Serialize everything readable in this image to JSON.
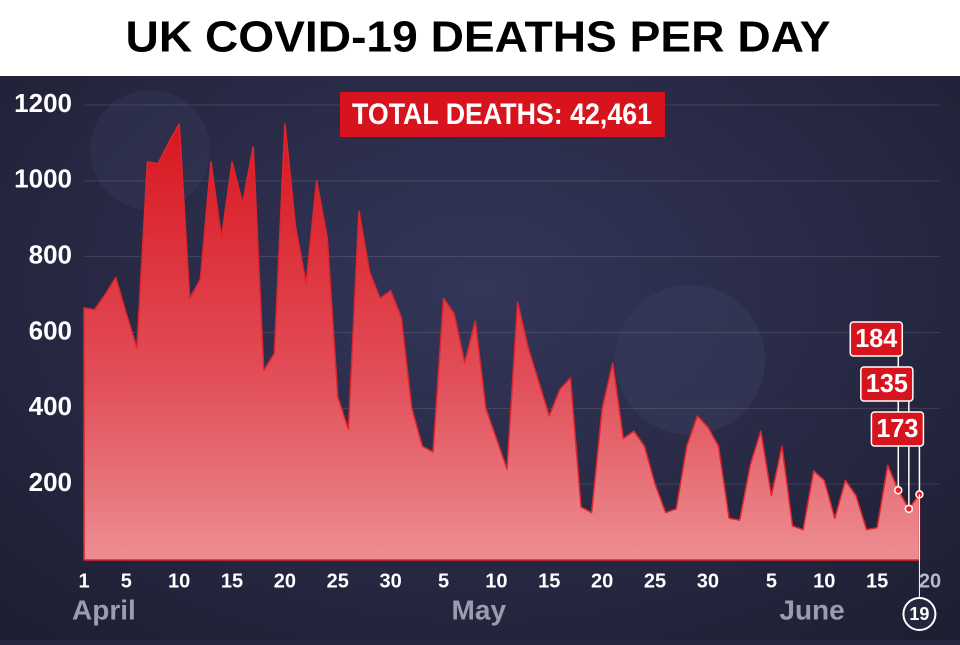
{
  "chart_data": {
    "type": "area",
    "title": "UK COVID-19 DEATHS PER DAY",
    "annotation": "TOTAL DEATHS: 42,461",
    "categories": [
      "1",
      null,
      null,
      null,
      "5",
      null,
      null,
      null,
      null,
      "10",
      null,
      null,
      null,
      null,
      "15",
      null,
      null,
      null,
      null,
      "20",
      null,
      null,
      null,
      null,
      "25",
      null,
      null,
      null,
      null,
      "30",
      null,
      null,
      null,
      null,
      "5",
      null,
      null,
      null,
      null,
      "10",
      null,
      null,
      null,
      null,
      "15",
      null,
      null,
      null,
      null,
      "20",
      null,
      null,
      null,
      null,
      "25",
      null,
      null,
      null,
      null,
      "30",
      null,
      null,
      null,
      null,
      null,
      "5",
      null,
      null,
      null,
      null,
      "10",
      null,
      null,
      null,
      null,
      "15",
      null,
      null,
      null,
      "19",
      "20"
    ],
    "months": [
      "April",
      "May",
      "June"
    ],
    "values": [
      665,
      660,
      700,
      745,
      650,
      560,
      1050,
      1045,
      1100,
      1150,
      690,
      740,
      1050,
      850,
      1050,
      940,
      1090,
      500,
      545,
      1150,
      880,
      730,
      1000,
      850,
      430,
      345,
      920,
      760,
      690,
      710,
      640,
      400,
      300,
      285,
      690,
      650,
      520,
      630,
      400,
      320,
      240,
      680,
      560,
      470,
      380,
      450,
      480,
      140,
      125,
      400,
      520,
      320,
      340,
      300,
      200,
      125,
      135,
      300,
      380,
      350,
      300,
      110,
      105,
      250,
      340,
      170,
      300,
      90,
      80,
      235,
      210,
      110,
      210,
      170,
      80,
      85,
      250,
      184,
      135,
      173,
      null
    ],
    "value_labels": [
      null,
      null,
      null,
      null,
      null,
      null,
      null,
      null,
      null,
      null,
      null,
      null,
      null,
      null,
      null,
      null,
      null,
      null,
      null,
      null,
      null,
      null,
      null,
      null,
      null,
      null,
      null,
      null,
      null,
      null,
      null,
      null,
      null,
      null,
      null,
      null,
      null,
      null,
      null,
      null,
      null,
      null,
      null,
      null,
      null,
      null,
      null,
      null,
      null,
      null,
      null,
      null,
      null,
      null,
      null,
      null,
      null,
      null,
      null,
      null,
      null,
      null,
      null,
      null,
      null,
      null,
      null,
      null,
      null,
      null,
      null,
      null,
      null,
      null,
      null,
      null,
      null,
      "184",
      "135",
      "173",
      null
    ],
    "color": "#e0262c",
    "ylim": [
      0,
      1200
    ],
    "yticks": [
      200,
      400,
      600,
      800,
      1000,
      1200
    ],
    "grid": true
  }
}
